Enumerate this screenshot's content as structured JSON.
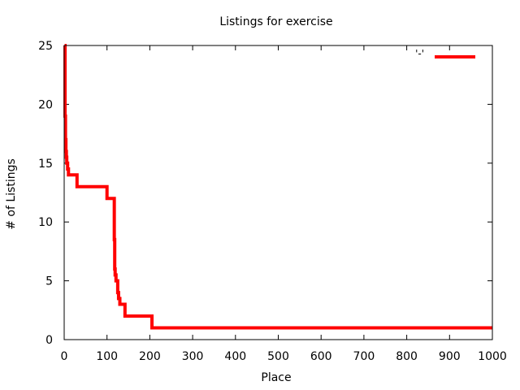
{
  "chart_data": {
    "type": "line",
    "title": "Listings for exercise",
    "xlabel": "Place",
    "ylabel": "# of Listings",
    "xlim": [
      0,
      1000
    ],
    "ylim": [
      0,
      25
    ],
    "xticks": [
      "0",
      "100",
      "200",
      "300",
      "400",
      "500",
      "600",
      "700",
      "800",
      "900",
      "1000"
    ],
    "yticks": [
      "0",
      "5",
      "10",
      "15",
      "20",
      "25"
    ],
    "grid": false,
    "legend": "top-right",
    "series": [
      {
        "name": "'-'",
        "color": "#ff0000",
        "step": true,
        "x": [
          1,
          2,
          3,
          4,
          5,
          6,
          8,
          10,
          28,
          30,
          98,
          100,
          115,
          117,
          118,
          119,
          121,
          125,
          127,
          130,
          140,
          142,
          203,
          205,
          1000
        ],
        "y": [
          25,
          19,
          17,
          16,
          15.5,
          15,
          14.5,
          14,
          14,
          13,
          13,
          12,
          12,
          8.5,
          6,
          5.5,
          5,
          4,
          3.5,
          3,
          3,
          2,
          2,
          1,
          1
        ]
      }
    ]
  }
}
